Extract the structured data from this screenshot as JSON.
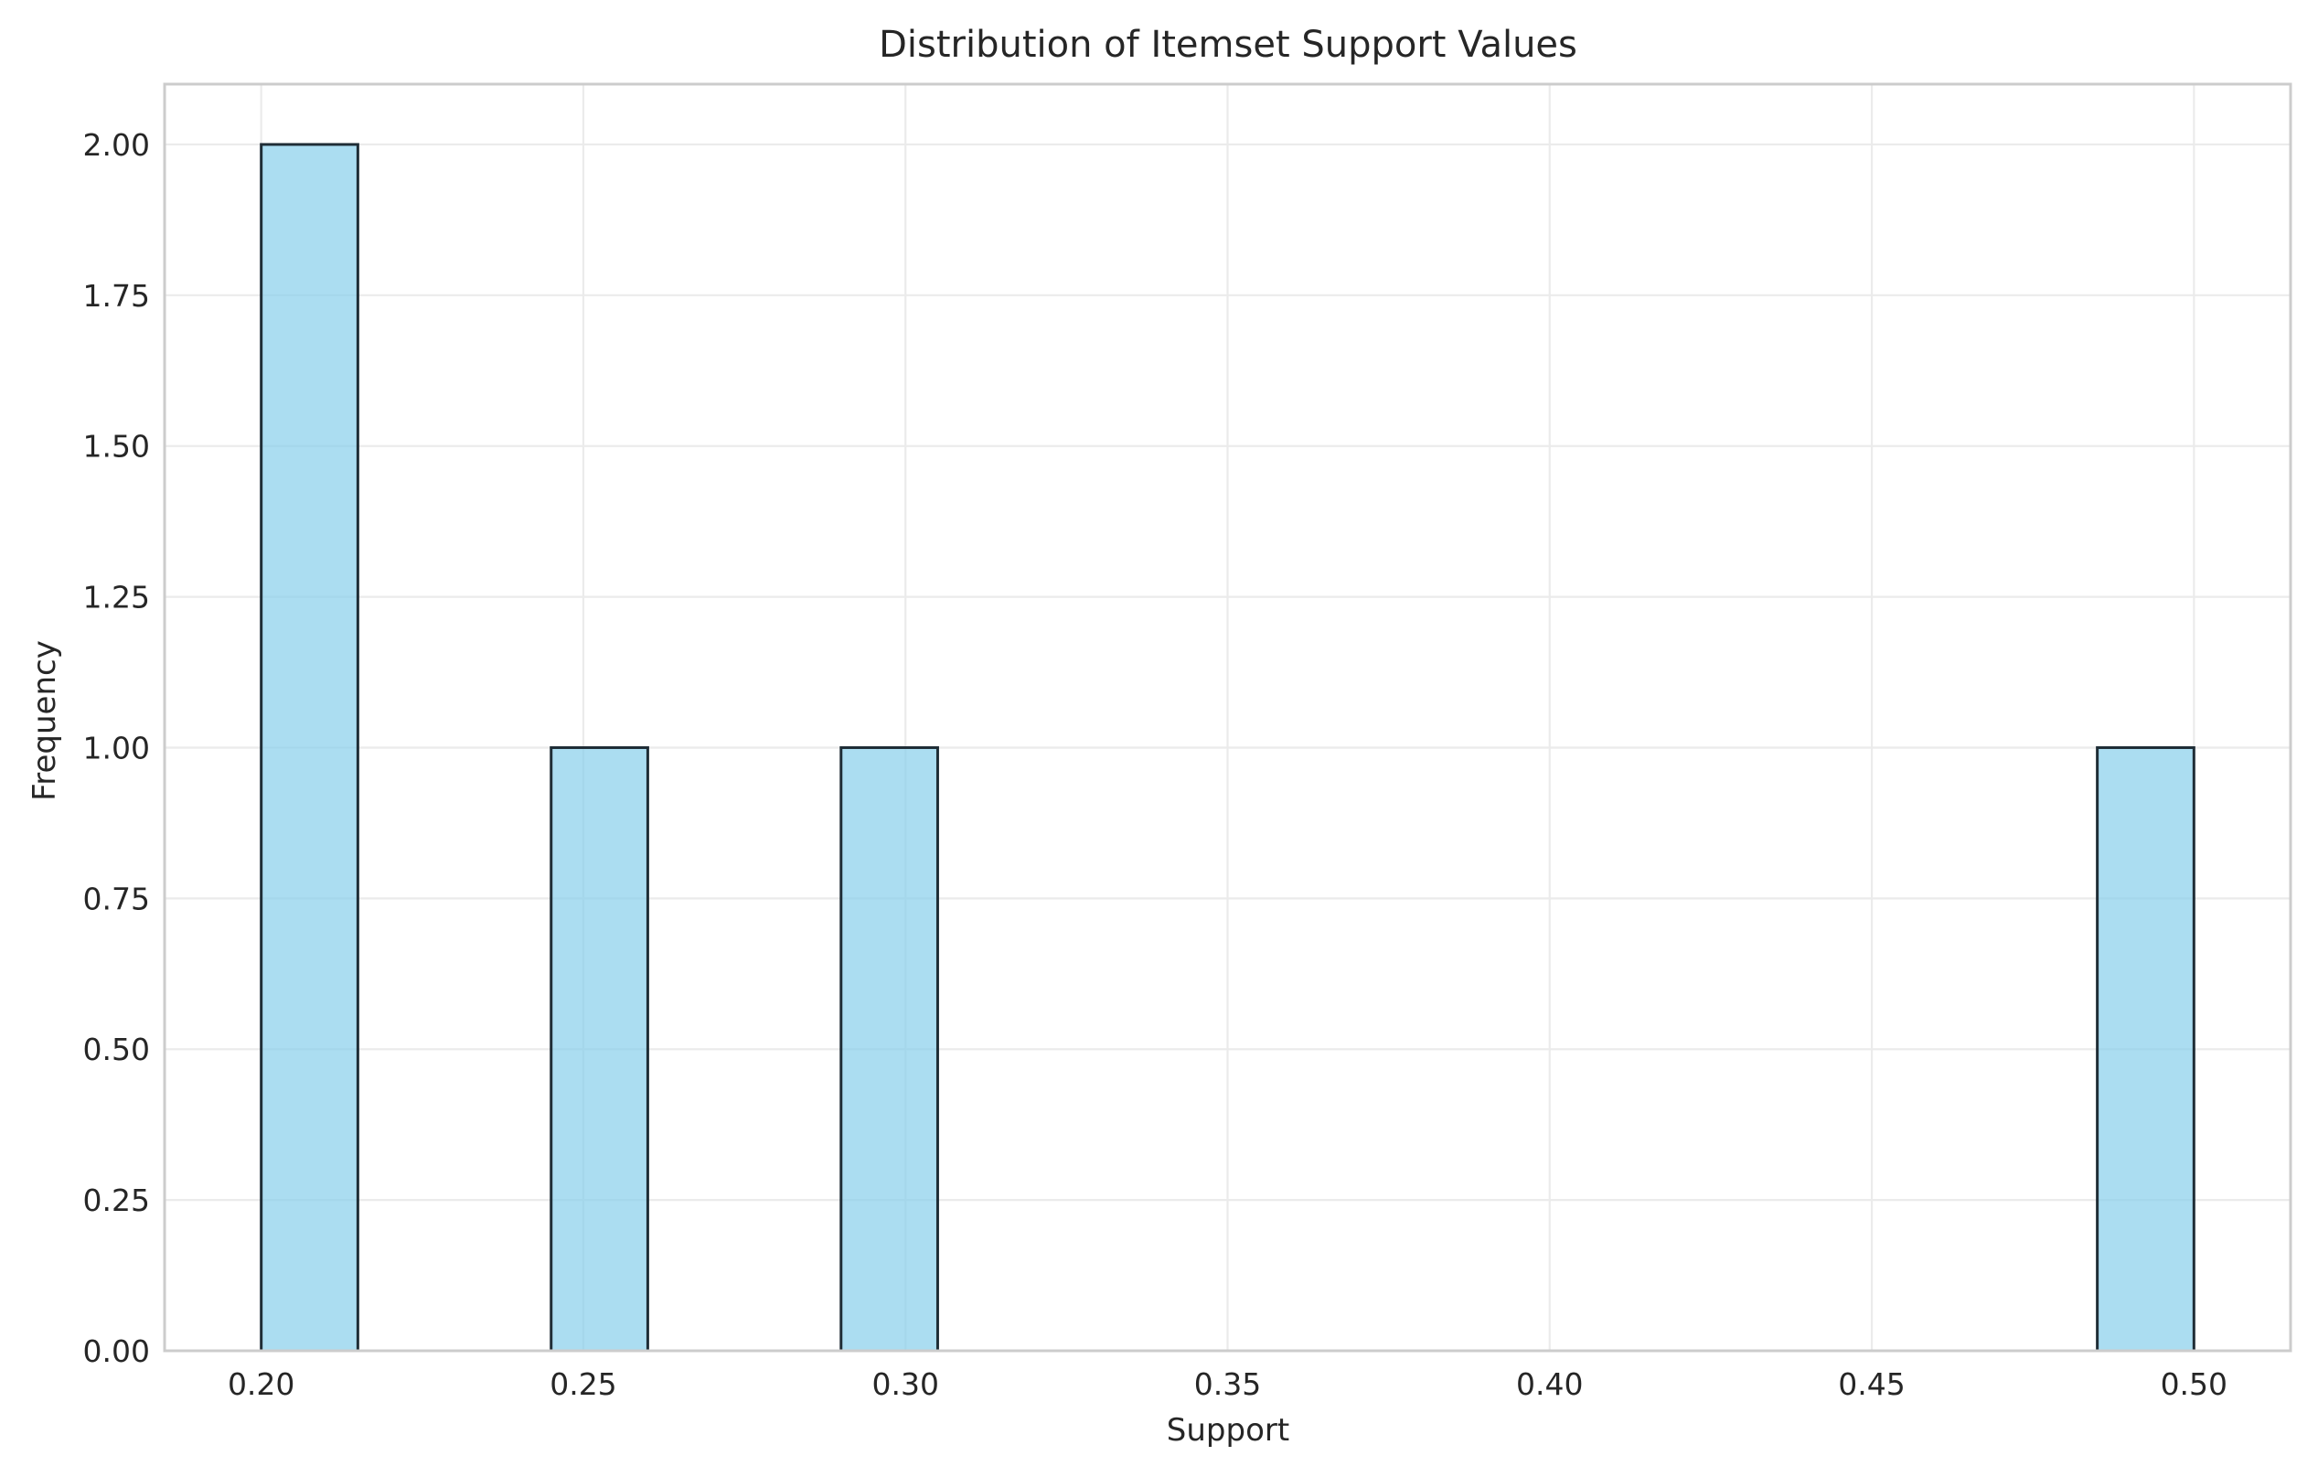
{
  "chart_data": {
    "type": "bar",
    "title": "Distribution of Itemset Support Values",
    "xlabel": "Support",
    "ylabel": "Frequency",
    "xlim": [
      0.185,
      0.515
    ],
    "ylim": [
      0,
      2.1
    ],
    "x_ticks": [
      "0.20",
      "0.25",
      "0.30",
      "0.35",
      "0.40",
      "0.45",
      "0.50"
    ],
    "y_ticks": [
      "0.00",
      "0.25",
      "0.50",
      "0.75",
      "1.00",
      "1.25",
      "1.50",
      "1.75",
      "2.00"
    ],
    "grid": true,
    "bar_color": "#87ceeb",
    "edge_color": "#1f2d36",
    "bins": [
      {
        "x0": 0.2,
        "x1": 0.215,
        "count": 2
      },
      {
        "x0": 0.245,
        "x1": 0.26,
        "count": 1
      },
      {
        "x0": 0.29,
        "x1": 0.305,
        "count": 1
      },
      {
        "x0": 0.485,
        "x1": 0.5,
        "count": 1
      }
    ]
  }
}
